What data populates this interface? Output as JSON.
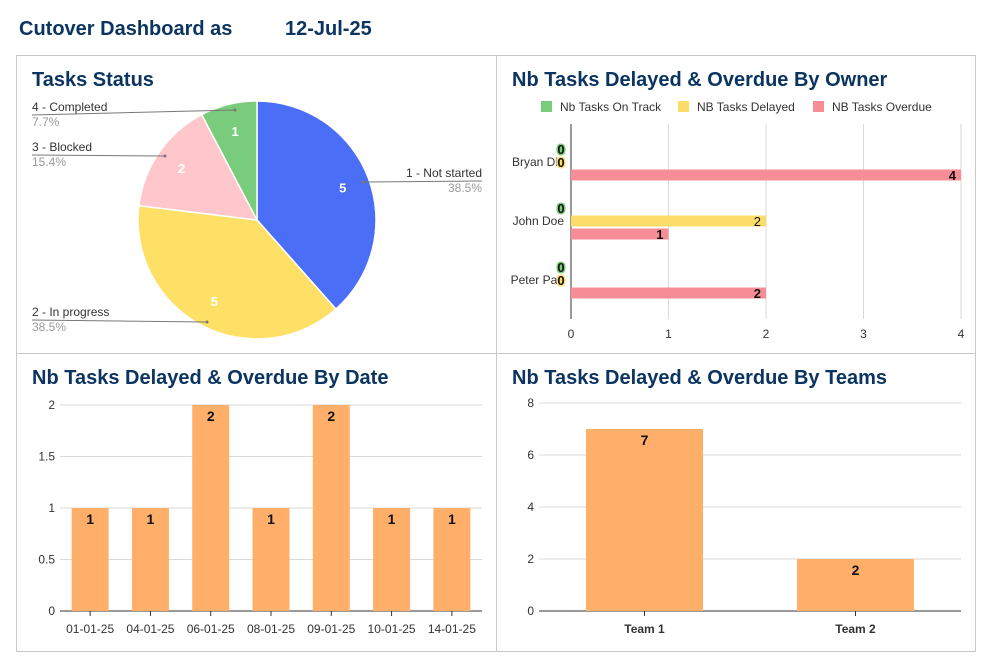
{
  "header": {
    "title": "Cutover Dashboard as",
    "date": "12-Jul-25"
  },
  "colors": {
    "title": "#0b3560",
    "on_track": "#79cc7b",
    "delayed": "#fddd6a",
    "overdue": "#f78d96",
    "bar": "#ffaf6a",
    "pie_not_started": "#4a6ef5",
    "pie_in_progress": "#ffe066",
    "pie_blocked": "#ffc6cc",
    "pie_completed": "#79cc7b"
  },
  "chart_data": [
    {
      "id": "tasks-status",
      "type": "pie",
      "title": "Tasks Status",
      "slices": [
        {
          "label": "1 - Not started",
          "value": 5,
          "percent": "38.5%",
          "color": "#4a6ef5"
        },
        {
          "label": "2 - In progress",
          "value": 5,
          "percent": "38.5%",
          "color": "#ffe066"
        },
        {
          "label": "3 - Blocked",
          "value": 2,
          "percent": "15.4%",
          "color": "#ffc6cc"
        },
        {
          "label": "4 - Completed",
          "value": 1,
          "percent": "7.7%",
          "color": "#79cc7b"
        }
      ]
    },
    {
      "id": "by-owner",
      "type": "bar",
      "orientation": "horizontal",
      "title": "Nb Tasks Delayed & Overdue By Owner",
      "categories": [
        "Bryan Dic",
        "John Doe",
        "Peter Pan"
      ],
      "series": [
        {
          "name": "Nb Tasks On Track",
          "color": "#79cc7b",
          "values": [
            0,
            0,
            0
          ]
        },
        {
          "name": "NB Tasks Delayed",
          "color": "#fddd6a",
          "values": [
            0,
            2,
            0
          ]
        },
        {
          "name": "NB Tasks Overdue",
          "color": "#f78d96",
          "values": [
            4,
            1,
            2
          ]
        }
      ],
      "xlim": [
        0,
        4
      ],
      "xticks": [
        0,
        1,
        2,
        3,
        4
      ],
      "legend": "top"
    },
    {
      "id": "by-date",
      "type": "bar",
      "title": "Nb Tasks Delayed & Overdue By Date",
      "categories": [
        "01-01-25",
        "04-01-25",
        "06-01-25",
        "08-01-25",
        "09-01-25",
        "10-01-25",
        "14-01-25"
      ],
      "values": [
        1,
        1,
        2,
        1,
        2,
        1,
        1
      ],
      "ylim": [
        0,
        2
      ],
      "yticks": [
        "0",
        "0.5",
        "1",
        "1.5",
        "2"
      ],
      "color": "#ffaf6a"
    },
    {
      "id": "by-teams",
      "type": "bar",
      "title": "Nb Tasks Delayed & Overdue By Teams",
      "categories": [
        "Team 1",
        "Team 2"
      ],
      "values": [
        7,
        2
      ],
      "ylim": [
        0,
        8
      ],
      "yticks": [
        "0",
        "2",
        "4",
        "6",
        "8"
      ],
      "color": "#ffaf6a"
    }
  ]
}
